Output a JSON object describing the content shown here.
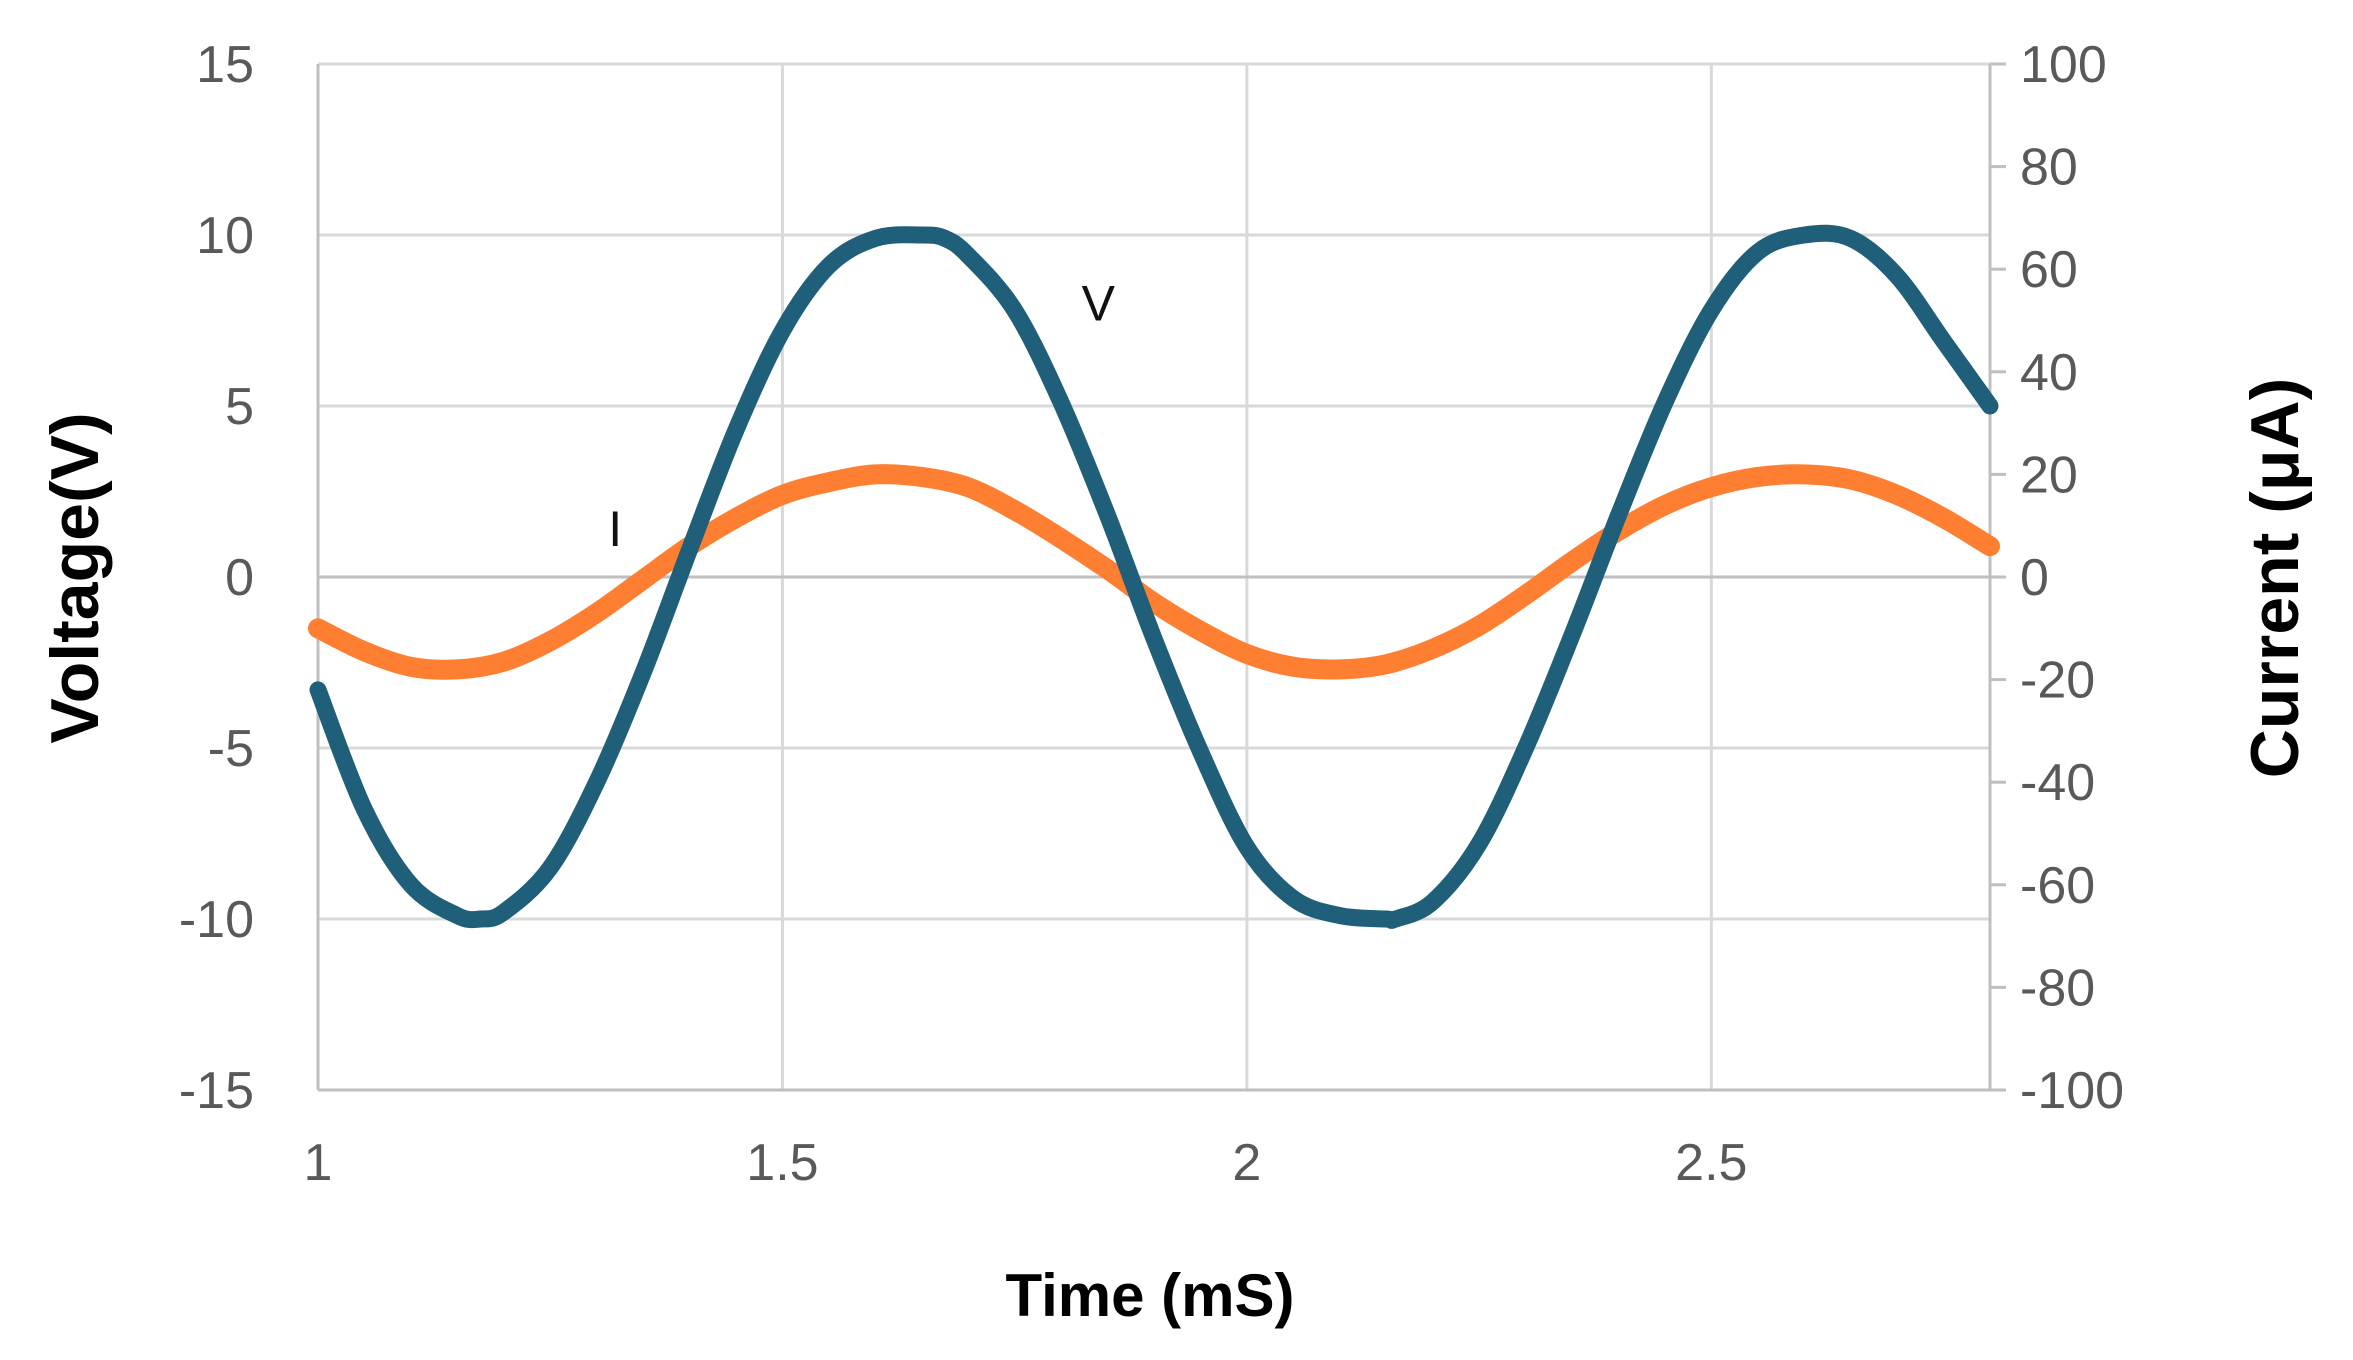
{
  "chart_data": {
    "type": "line",
    "xlabel": "Time (mS)",
    "ylabel_left": "Voltage(V)",
    "ylabel_right": "Current (μA)",
    "x_range": [
      1,
      2.8
    ],
    "x_ticks": [
      1,
      1.5,
      2,
      2.5
    ],
    "x_tick_labels": [
      "1",
      "1.5",
      "2",
      "2.5"
    ],
    "y_left_range": [
      -15,
      15
    ],
    "y_left_ticks": [
      15,
      10,
      5,
      0,
      -5,
      -10,
      -15
    ],
    "y_left_tick_labels": [
      "15",
      "10",
      "5",
      "0",
      "-5",
      "-10",
      "-15"
    ],
    "y_right_range": [
      -100,
      100
    ],
    "y_right_ticks": [
      100,
      80,
      60,
      40,
      20,
      0,
      -20,
      -40,
      -60,
      -80,
      -100
    ],
    "y_right_tick_labels": [
      "100",
      "80",
      "60",
      "40",
      "20",
      "0",
      "-20",
      "-40",
      "-60",
      "-80",
      "-100"
    ],
    "grid": true,
    "series": [
      {
        "name": "V",
        "axis": "left",
        "color": "#1f5f7a",
        "x": [
          1.0,
          1.05,
          1.1,
          1.15,
          1.175,
          1.2,
          1.25,
          1.3,
          1.35,
          1.4,
          1.45,
          1.5,
          1.55,
          1.6,
          1.65,
          1.675,
          1.7,
          1.75,
          1.8,
          1.85,
          1.9,
          1.95,
          2.0,
          2.05,
          2.1,
          2.15,
          2.16,
          2.2,
          2.25,
          2.3,
          2.35,
          2.4,
          2.45,
          2.5,
          2.55,
          2.6,
          2.65,
          2.7,
          2.75,
          2.8
        ],
        "values": [
          -3.3,
          -6.8,
          -9.0,
          -9.9,
          -10.0,
          -9.8,
          -8.5,
          -6.0,
          -2.8,
          0.8,
          4.3,
          7.2,
          9.1,
          9.9,
          10.0,
          9.9,
          9.4,
          7.8,
          5.1,
          1.8,
          -1.8,
          -5.1,
          -7.9,
          -9.4,
          -9.9,
          -10.0,
          -10.0,
          -9.5,
          -7.8,
          -5.0,
          -1.7,
          1.8,
          5.1,
          7.8,
          9.5,
          10.0,
          9.9,
          8.8,
          6.9,
          5.0
        ]
      },
      {
        "name": "I",
        "axis": "right",
        "color": "#ff7f32",
        "x": [
          1.0,
          1.05,
          1.1,
          1.15,
          1.2,
          1.25,
          1.3,
          1.35,
          1.4,
          1.45,
          1.5,
          1.55,
          1.6,
          1.65,
          1.7,
          1.75,
          1.8,
          1.85,
          1.9,
          1.95,
          2.0,
          2.05,
          2.1,
          2.15,
          2.2,
          2.25,
          2.3,
          2.35,
          2.4,
          2.45,
          2.5,
          2.55,
          2.6,
          2.65,
          2.7,
          2.75,
          2.8
        ],
        "values": [
          -10,
          -14.5,
          -17.5,
          -18,
          -16.5,
          -12.5,
          -7,
          -0.5,
          6,
          11.5,
          16,
          18.5,
          20,
          19.5,
          17.5,
          13,
          7.5,
          1.5,
          -5,
          -10.5,
          -15,
          -17.5,
          -18,
          -17,
          -14,
          -9.5,
          -3.5,
          3,
          9,
          14,
          17.5,
          19.5,
          20,
          19,
          16,
          11.5,
          6
        ]
      }
    ],
    "annotations": [
      {
        "text": "V",
        "x": 1.84,
        "y_left": 7.5
      },
      {
        "text": "I",
        "x": 1.32,
        "y_left": 0.9
      }
    ]
  }
}
